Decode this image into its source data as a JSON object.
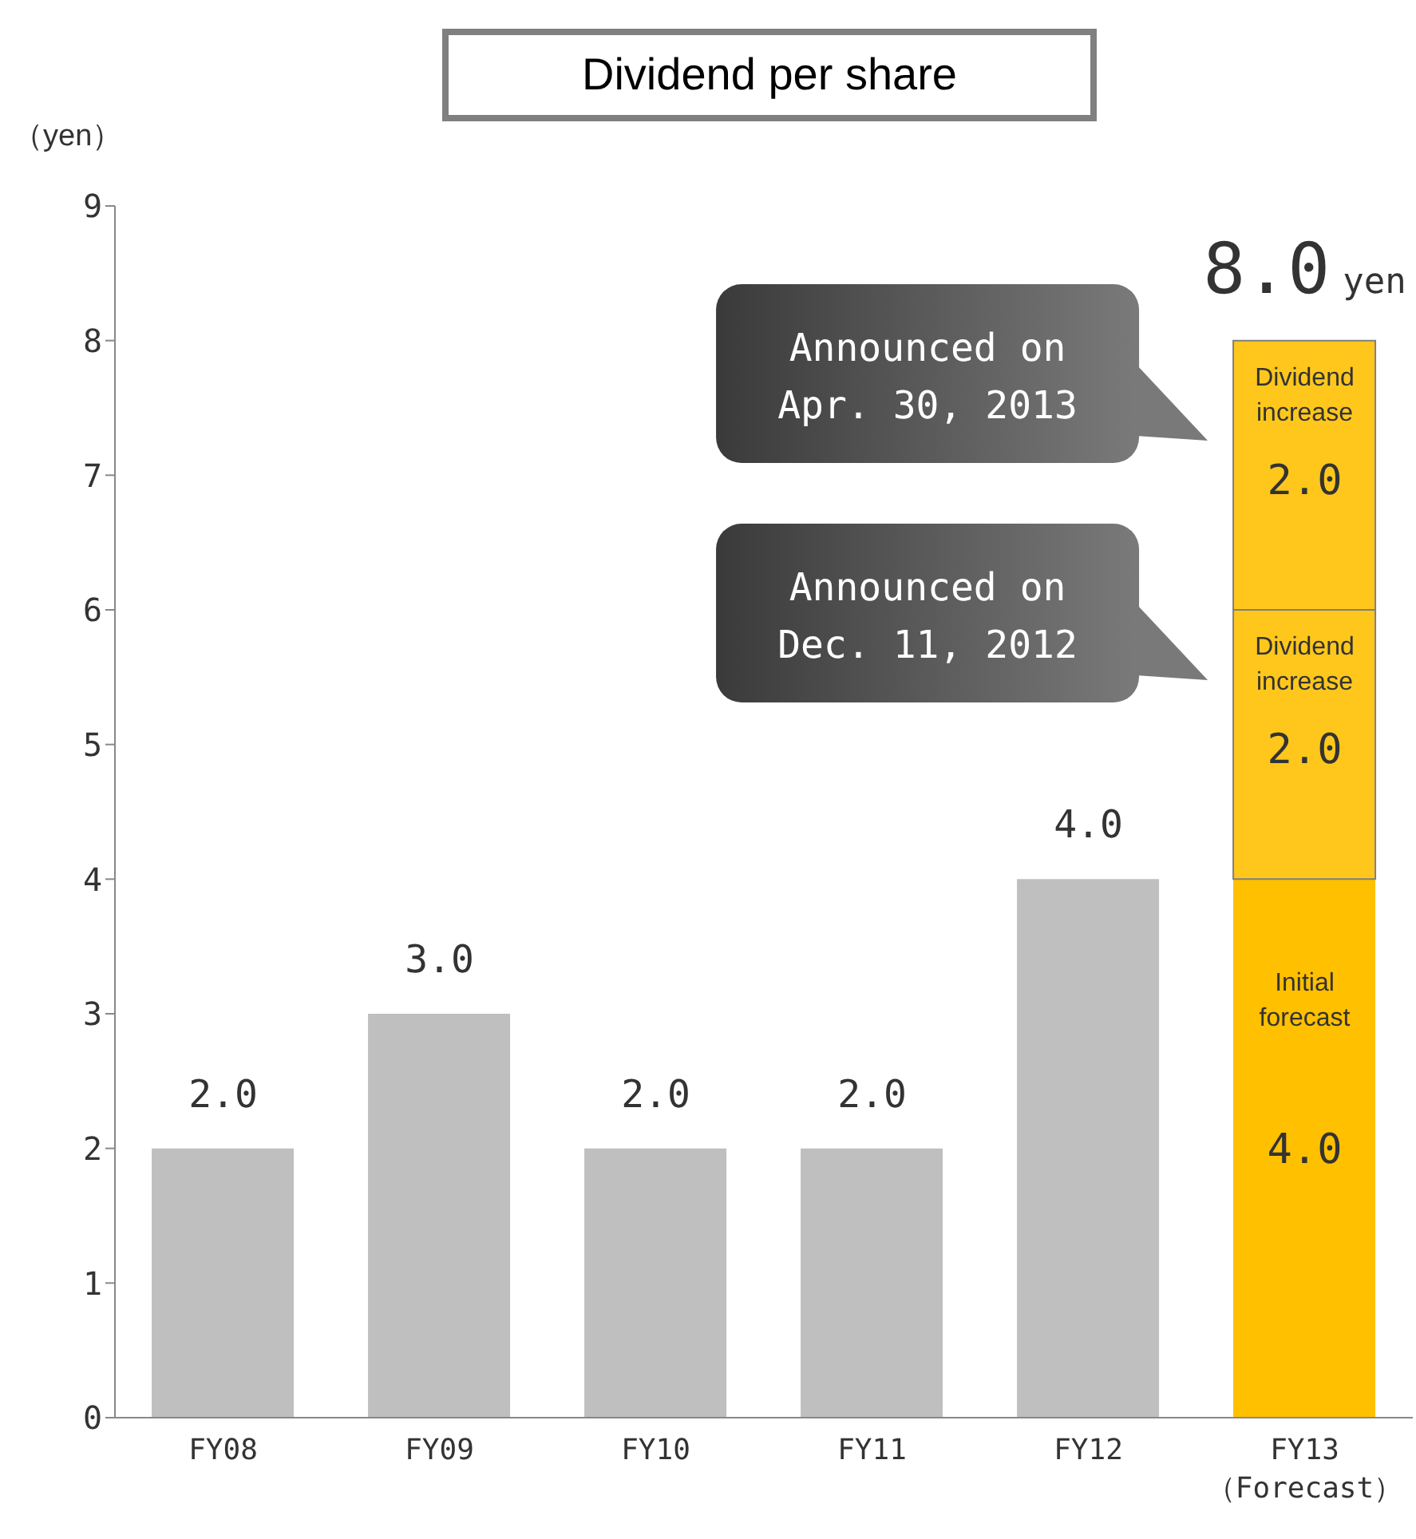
{
  "chart_data": {
    "type": "bar",
    "title": "Dividend per share",
    "ylabel": "（yen）",
    "stacked": true,
    "categories": [
      "FY08",
      "FY09",
      "FY10",
      "FY11",
      "FY12",
      "FY13\n（Forecast）"
    ],
    "series": [
      {
        "name": "Initial forecast",
        "colors": [
          "#bfbfbf",
          "#bfbfbf",
          "#bfbfbf",
          "#bfbfbf",
          "#bfbfbf",
          "#ffc000"
        ],
        "values": [
          2,
          3,
          2,
          2,
          4,
          4
        ],
        "value_labels": [
          null,
          null,
          null,
          null,
          null,
          "4.0"
        ]
      },
      {
        "name": "Dividend increase",
        "color": "#ffc71c",
        "values": [
          null,
          null,
          null,
          null,
          null,
          2
        ],
        "value_labels": [
          null,
          null,
          null,
          null,
          null,
          "2.0"
        ]
      },
      {
        "name": "Dividend increase",
        "color": "#ffc71c",
        "values": [
          null,
          null,
          null,
          null,
          null,
          2
        ],
        "value_labels": [
          null,
          null,
          null,
          null,
          null,
          "2.0"
        ]
      }
    ],
    "totals": [
      "2.0",
      "3.0",
      "2.0",
      "2.0",
      "4.0",
      "8.0 yen"
    ],
    "annotations": [
      "Announced on\nApr. 30, 2013",
      "Announced on\nDec. 11, 2012"
    ],
    "ylim": [
      0,
      9
    ],
    "yticks": [
      0,
      1,
      2,
      3,
      4,
      5,
      6,
      7,
      8,
      9
    ]
  }
}
